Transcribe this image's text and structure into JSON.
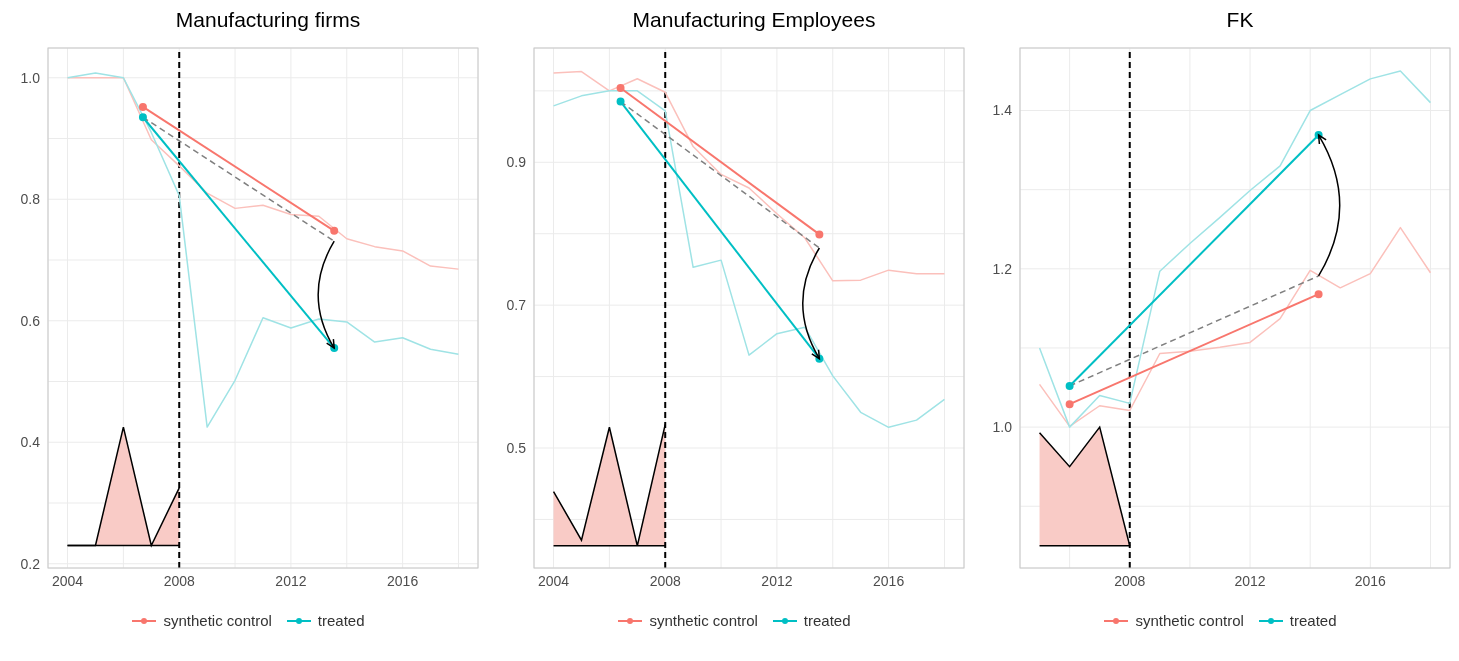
{
  "chart_data": [
    {
      "type": "line",
      "title": "Manufacturing firms",
      "x": [
        2004,
        2005,
        2006,
        2007,
        2008,
        2009,
        2010,
        2011,
        2012,
        2013,
        2014,
        2015,
        2016,
        2017,
        2018
      ],
      "xlim": [
        2003.3,
        2018.7
      ],
      "xticks": [
        2004,
        {
          "value": 2006,
          "label": null
        },
        2008,
        {
          "value": 2010,
          "label": null
        },
        2012,
        {
          "value": 2014,
          "label": null
        },
        2016,
        {
          "value": 2018,
          "label": null
        }
      ],
      "ylim": [
        0.193,
        1.049
      ],
      "yticks": [
        {
          "value": 0.2,
          "label": "0.2"
        },
        {
          "value": 0.3,
          "label": null
        },
        {
          "value": 0.4,
          "label": "0.4"
        },
        {
          "value": 0.5,
          "label": null
        },
        {
          "value": 0.6,
          "label": "0.6"
        },
        {
          "value": 0.7,
          "label": null
        },
        {
          "value": 0.8,
          "label": "0.8"
        },
        {
          "value": 0.9,
          "label": null
        },
        {
          "value": 1.0,
          "label": "1.0"
        }
      ],
      "grid": true,
      "legend": "bottom",
      "ref_lines": [
        {
          "axis": "x",
          "value": 2008,
          "color": "#000000",
          "line_style": "dashed"
        }
      ],
      "series": [
        {
          "color": "#fbc0bb",
          "values": [
            1.0,
            1.0,
            1.0,
            0.898,
            0.855,
            0.81,
            0.785,
            0.79,
            0.775,
            0.772,
            0.735,
            0.722,
            0.715,
            0.69,
            0.685
          ]
        },
        {
          "color": "#9fe3e5",
          "values": [
            1.0,
            1.008,
            1.0,
            0.91,
            0.806,
            0.425,
            0.502,
            0.605,
            0.588,
            0.603,
            0.598,
            0.565,
            0.572,
            0.553,
            0.545
          ]
        },
        {
          "name": "synthetic control",
          "color": "#f8766d",
          "marker": "circle",
          "x": [
            2006.7,
            2013.55
          ],
          "values": [
            0.952,
            0.748
          ]
        },
        {
          "name": "treated",
          "color": "#00bfc4",
          "marker": "circle",
          "x": [
            2006.7,
            2013.55
          ],
          "values": [
            0.935,
            0.555
          ]
        },
        {
          "color": "#808080",
          "line_style": "dashed",
          "x": [
            2006.7,
            2013.55
          ],
          "values": [
            0.935,
            0.731
          ]
        },
        {
          "type": "area",
          "color": "#f9cbc6",
          "x": [
            2004,
            2005,
            2006,
            2007,
            2008
          ],
          "values": [
            0.23,
            0.23,
            0.425,
            0.23,
            0.325
          ]
        },
        {
          "color": "#000000",
          "x": [
            2004,
            2005,
            2006,
            2007,
            2008
          ],
          "values": [
            0.23,
            0.23,
            0.23,
            0.23,
            0.23
          ]
        }
      ]
    },
    {
      "type": "line",
      "title": "Manufacturing Employees",
      "x": [
        2004,
        2005,
        2006,
        2007,
        2008,
        2009,
        2010,
        2011,
        2012,
        2013,
        2014,
        2015,
        2016,
        2017,
        2018
      ],
      "xlim": [
        2003.3,
        2018.7
      ],
      "xticks": [
        2004,
        {
          "value": 2006,
          "label": null
        },
        2008,
        {
          "value": 2010,
          "label": null
        },
        2012,
        {
          "value": 2014,
          "label": null
        },
        2016,
        {
          "value": 2018,
          "label": null
        }
      ],
      "ylim": [
        0.332,
        1.06
      ],
      "yticks": [
        {
          "value": 0.4,
          "label": null
        },
        {
          "value": 0.5,
          "label": "0.5"
        },
        {
          "value": 0.6,
          "label": null
        },
        {
          "value": 0.7,
          "label": "0.7"
        },
        {
          "value": 0.8,
          "label": null
        },
        {
          "value": 0.9,
          "label": "0.9"
        },
        {
          "value": 1.0,
          "label": null
        }
      ],
      "grid": true,
      "legend": "bottom",
      "ref_lines": [
        {
          "axis": "x",
          "value": 2008,
          "color": "#000000",
          "line_style": "dashed"
        }
      ],
      "series": [
        {
          "color": "#fbc0bb",
          "values": [
            1.025,
            1.027,
            1.0,
            1.017,
            0.998,
            0.922,
            0.883,
            0.864,
            0.828,
            0.794,
            0.734,
            0.735,
            0.749,
            0.744,
            0.744
          ]
        },
        {
          "color": "#9fe3e5",
          "values": [
            0.979,
            0.993,
            1.0,
            1.0,
            0.972,
            0.753,
            0.763,
            0.63,
            0.66,
            0.669,
            0.601,
            0.55,
            0.529,
            0.539,
            0.568
          ]
        },
        {
          "name": "synthetic control",
          "color": "#f8766d",
          "marker": "circle",
          "x": [
            2006.4,
            2013.52
          ],
          "values": [
            1.004,
            0.799
          ]
        },
        {
          "name": "treated",
          "color": "#00bfc4",
          "marker": "circle",
          "x": [
            2006.4,
            2013.52
          ],
          "values": [
            0.985,
            0.625
          ]
        },
        {
          "color": "#808080",
          "line_style": "dashed",
          "x": [
            2006.4,
            2013.52
          ],
          "values": [
            0.985,
            0.78
          ]
        },
        {
          "type": "area",
          "color": "#f9cbc6",
          "x": [
            2004,
            2005,
            2006,
            2007,
            2008
          ],
          "values": [
            0.439,
            0.371,
            0.529,
            0.363,
            0.533
          ]
        },
        {
          "color": "#000000",
          "x": [
            2004,
            2005,
            2006,
            2007,
            2008
          ],
          "values": [
            0.363,
            0.363,
            0.363,
            0.363,
            0.363
          ]
        }
      ]
    },
    {
      "type": "line",
      "title": "FK",
      "x": [
        2005,
        2006,
        2007,
        2008,
        2009,
        2010,
        2011,
        2012,
        2013,
        2014,
        2015,
        2016,
        2017,
        2018
      ],
      "xlim": [
        2004.35,
        2018.65
      ],
      "xticks": [
        {
          "value": 2006,
          "label": null
        },
        2008,
        {
          "value": 2010,
          "label": null
        },
        2012,
        {
          "value": 2014,
          "label": null
        },
        2016,
        {
          "value": 2018,
          "label": null
        }
      ],
      "ylim": [
        0.822,
        1.479
      ],
      "yticks": [
        {
          "value": 0.9,
          "label": null
        },
        {
          "value": 1.0,
          "label": "1.0"
        },
        {
          "value": 1.1,
          "label": null
        },
        {
          "value": 1.2,
          "label": "1.2"
        },
        {
          "value": 1.3,
          "label": null
        },
        {
          "value": 1.4,
          "label": "1.4"
        }
      ],
      "grid": true,
      "legend": "bottom",
      "ref_lines": [
        {
          "axis": "x",
          "value": 2008,
          "color": "#000000",
          "line_style": "dashed"
        }
      ],
      "series": [
        {
          "color": "#fbc0bb",
          "values": [
            1.054,
            1.001,
            1.027,
            1.021,
            1.093,
            1.096,
            1.101,
            1.107,
            1.137,
            1.198,
            1.176,
            1.194,
            1.252,
            1.195
          ]
        },
        {
          "color": "#9fe3e5",
          "values": [
            1.1,
            1.0,
            1.04,
            1.03,
            1.197,
            1.232,
            1.265,
            1.299,
            1.33,
            1.4,
            1.42,
            1.44,
            1.45,
            1.41
          ]
        },
        {
          "name": "synthetic control",
          "color": "#f8766d",
          "marker": "circle",
          "x": [
            2006.0,
            2014.28
          ],
          "values": [
            1.029,
            1.168
          ]
        },
        {
          "name": "treated",
          "color": "#00bfc4",
          "marker": "circle",
          "x": [
            2006.0,
            2014.28
          ],
          "values": [
            1.052,
            1.369
          ]
        },
        {
          "color": "#808080",
          "line_style": "dashed",
          "x": [
            2006.0,
            2014.28
          ],
          "values": [
            1.052,
            1.191
          ]
        },
        {
          "type": "area",
          "color": "#f9cbc6",
          "x": [
            2005,
            2006,
            2007,
            2008
          ],
          "values": [
            0.993,
            0.95,
            1.0,
            0.85
          ]
        },
        {
          "color": "#000000",
          "x": [
            2005,
            2006,
            2007,
            2008
          ],
          "values": [
            0.85,
            0.85,
            0.85,
            0.85
          ]
        }
      ]
    }
  ]
}
